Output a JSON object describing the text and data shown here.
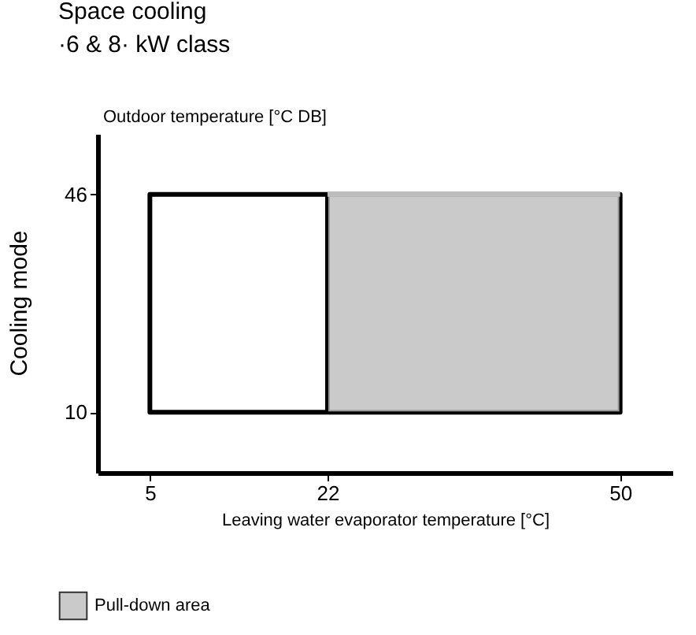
{
  "chart_data": {
    "type": "line",
    "title": "Space cooling",
    "subtitle": "·6 & 8· kW class",
    "xlabel": "Leaving water evaporator temperature [°C]",
    "ylabel": "Outdoor temperature [°C DB]",
    "annotations": [
      "Cooling mode"
    ],
    "xlim": [
      0,
      55
    ],
    "ylim": [
      0,
      56
    ],
    "xticks": [
      5,
      22,
      50
    ],
    "yticks": [
      10,
      46
    ],
    "grid": false,
    "legend": "bottom left",
    "marker": "none",
    "line_style": "solid",
    "series": [
      {
        "color": "#000000",
        "x": [
          5,
          50,
          50,
          5,
          5,
          22,
          22
        ],
        "values": [
          10,
          10,
          46,
          46,
          10,
          10,
          46
        ]
      },
      {
        "name": "Pull-down area",
        "color": "#bdbdbd",
        "x": [
          22,
          50
        ],
        "values": [
          46,
          46
        ],
        "lower": [
          10,
          10
        ],
        "upper": [
          46,
          46
        ]
      }
    ]
  }
}
